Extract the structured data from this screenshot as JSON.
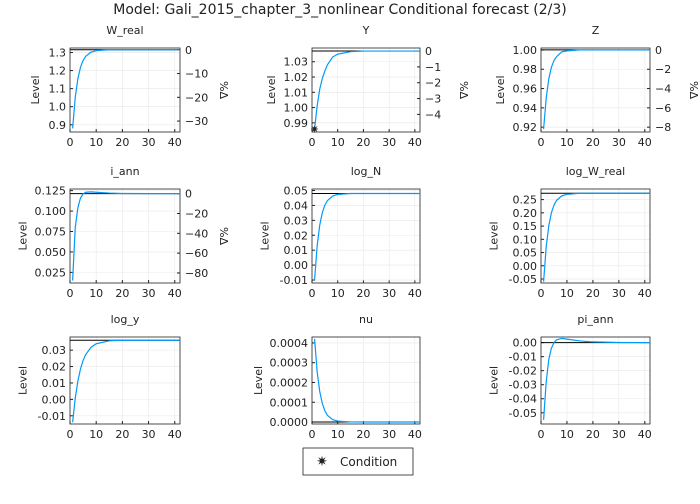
{
  "title": "Model: Gali_2015_chapter_3_nonlinear      Conditional forecast  (2/3)",
  "legend": {
    "label": "Condition",
    "marker": "star",
    "placement": "bottom-center"
  },
  "colors": {
    "forecast": "#009af9",
    "steady_state": "#000000",
    "grid": "#e8e8e8"
  },
  "chart_data": [
    {
      "type": "line",
      "title": "W_real",
      "ylabel": "Level",
      "ylabel_right": "%Δ",
      "ylim": [
        0.86,
        1.325
      ],
      "yticks": [
        0.9,
        1.0,
        1.1,
        1.2,
        1.3
      ],
      "ytick_labels": [
        "0.9",
        "1.0",
        "1.1",
        "1.2",
        "1.3"
      ],
      "yticks_right": [
        0,
        -10,
        -20,
        -30
      ],
      "steady_state": 1.315,
      "xlim": [
        0,
        42
      ],
      "xticks": [
        0,
        10,
        20,
        30,
        40
      ],
      "x": [
        1,
        2,
        3,
        4,
        5,
        6,
        8,
        10,
        15,
        20,
        30,
        40
      ],
      "values": [
        0.88,
        1.051,
        1.155,
        1.218,
        1.256,
        1.279,
        1.302,
        1.31,
        1.315,
        1.315,
        1.315,
        1.315
      ]
    },
    {
      "type": "line",
      "title": "Y",
      "ylabel": "Level",
      "ylabel_right": "%Δ",
      "ylim": [
        0.984,
        1.039
      ],
      "yticks": [
        0.99,
        1.0,
        1.01,
        1.02,
        1.03
      ],
      "ytick_labels": [
        "0.99",
        "1.00",
        "1.01",
        "1.02",
        "1.03"
      ],
      "yticks_right": [
        0,
        -1,
        -2,
        -3,
        -4
      ],
      "steady_state": 1.037,
      "xlim": [
        0,
        42
      ],
      "xticks": [
        0,
        10,
        20,
        30,
        40
      ],
      "x": [
        1,
        2,
        3,
        4,
        5,
        6,
        8,
        10,
        15,
        20,
        30,
        40
      ],
      "values": [
        0.986,
        1.001,
        1.012,
        1.019,
        1.024,
        1.028,
        1.033,
        1.035,
        1.0366,
        1.037,
        1.037,
        1.037
      ],
      "conditions": [
        {
          "x": 1,
          "y": 0.986
        }
      ]
    },
    {
      "type": "line",
      "title": "Z",
      "ylabel": "Level",
      "ylabel_right": "%Δ",
      "ylim": [
        0.915,
        1.002
      ],
      "yticks": [
        0.92,
        0.94,
        0.96,
        0.98,
        1.0
      ],
      "ytick_labels": [
        "0.92",
        "0.94",
        "0.96",
        "0.98",
        "1.00"
      ],
      "yticks_right": [
        0,
        -2,
        -4,
        -6,
        -8
      ],
      "steady_state": 1.0,
      "xlim": [
        0,
        42
      ],
      "xticks": [
        0,
        10,
        20,
        30,
        40
      ],
      "x": [
        1,
        2,
        3,
        4,
        5,
        6,
        8,
        10,
        15,
        20,
        30,
        40
      ],
      "values": [
        0.918,
        0.95,
        0.97,
        0.982,
        0.989,
        0.993,
        0.998,
        0.999,
        1.0,
        1.0,
        1.0,
        1.0
      ]
    },
    {
      "type": "line",
      "title": "i_ann",
      "ylabel": "Level",
      "ylabel_right": "%Δ",
      "ylim": [
        0.012,
        0.127
      ],
      "yticks": [
        0.025,
        0.05,
        0.075,
        0.1,
        0.125
      ],
      "ytick_labels": [
        "0.025",
        "0.050",
        "0.075",
        "0.100",
        "0.125"
      ],
      "yticks_right": [
        0,
        -20,
        -40,
        -60,
        -80
      ],
      "steady_state": 0.1213,
      "xlim": [
        0,
        42
      ],
      "xticks": [
        0,
        10,
        20,
        30,
        40
      ],
      "x": [
        1,
        2,
        3,
        4,
        5,
        6,
        8,
        10,
        15,
        20,
        30,
        40
      ],
      "values": [
        0.015,
        0.08,
        0.104,
        0.116,
        0.121,
        0.123,
        0.1235,
        0.123,
        0.122,
        0.1215,
        0.1213,
        0.1213
      ]
    },
    {
      "type": "line",
      "title": "log_N",
      "ylabel": "Level",
      "ylim": [
        -0.012,
        0.051
      ],
      "yticks": [
        -0.01,
        0,
        0.01,
        0.02,
        0.03,
        0.04,
        0.05
      ],
      "ytick_labels": [
        "-0.01",
        "0.00",
        "0.01",
        "0.02",
        "0.03",
        "0.04",
        "0.05"
      ],
      "steady_state": 0.048,
      "xlim": [
        0,
        42
      ],
      "xticks": [
        0,
        10,
        20,
        30,
        40
      ],
      "x": [
        1,
        2,
        3,
        4,
        5,
        6,
        8,
        10,
        15,
        20,
        30,
        40
      ],
      "values": [
        -0.01,
        0.0128,
        0.0267,
        0.0351,
        0.0402,
        0.0432,
        0.0463,
        0.0474,
        0.048,
        0.048,
        0.048,
        0.048
      ]
    },
    {
      "type": "line",
      "title": "log_W_real",
      "ylabel": "Level",
      "ylim": [
        -0.065,
        0.29
      ],
      "yticks": [
        -0.05,
        0,
        0.05,
        0.1,
        0.15,
        0.2,
        0.25
      ],
      "ytick_labels": [
        "-0.05",
        "0.00",
        "0.05",
        "0.10",
        "0.15",
        "0.20",
        "0.25"
      ],
      "steady_state": 0.274,
      "xlim": [
        0,
        42
      ],
      "xticks": [
        0,
        10,
        20,
        30,
        40
      ],
      "x": [
        1,
        2,
        3,
        4,
        5,
        6,
        8,
        10,
        15,
        20,
        30,
        40
      ],
      "values": [
        -0.06,
        0.071,
        0.151,
        0.2,
        0.229,
        0.247,
        0.264,
        0.27,
        0.274,
        0.274,
        0.274,
        0.274
      ]
    },
    {
      "type": "line",
      "title": "log_y",
      "ylabel": "Level",
      "ylim": [
        -0.015,
        0.038
      ],
      "yticks": [
        -0.01,
        0,
        0.01,
        0.02,
        0.03
      ],
      "ytick_labels": [
        "-0.01",
        "0.00",
        "0.01",
        "0.02",
        "0.03"
      ],
      "steady_state": 0.036,
      "xlim": [
        0,
        42
      ],
      "xticks": [
        0,
        10,
        20,
        30,
        40
      ],
      "x": [
        1,
        2,
        3,
        4,
        5,
        6,
        8,
        10,
        15,
        20,
        30,
        40
      ],
      "values": [
        -0.014,
        0.0007,
        0.0111,
        0.0185,
        0.0237,
        0.0273,
        0.0317,
        0.0339,
        0.0357,
        0.036,
        0.036,
        0.036
      ]
    },
    {
      "type": "line",
      "title": "nu",
      "ylabel": "Level",
      "ylim": [
        -1e-05,
        0.00043
      ],
      "yticks": [
        0,
        0.0001,
        0.0002,
        0.0003,
        0.0004
      ],
      "ytick_labels": [
        "0.0000",
        "0.0001",
        "0.0002",
        "0.0003",
        "0.0004"
      ],
      "steady_state": 0,
      "xlim": [
        0,
        42
      ],
      "xticks": [
        0,
        10,
        20,
        30,
        40
      ],
      "x": [
        1,
        2,
        3,
        4,
        5,
        6,
        8,
        10,
        15,
        20,
        30,
        40
      ],
      "values": [
        0.00042,
        0.000255,
        0.000155,
        9.4e-05,
        5.7e-05,
        3.4e-05,
        1.26e-05,
        4.6e-06,
        5e-07,
        0,
        0,
        0
      ]
    },
    {
      "type": "line",
      "title": "pi_ann",
      "ylabel": "Level",
      "ylim": [
        -0.058,
        0.004
      ],
      "yticks": [
        -0.05,
        -0.04,
        -0.03,
        -0.02,
        -0.01,
        0
      ],
      "ytick_labels": [
        "-0.05",
        "-0.04",
        "-0.03",
        "-0.02",
        "-0.01",
        "0.00"
      ],
      "steady_state": 0,
      "xlim": [
        0,
        42
      ],
      "xticks": [
        0,
        10,
        20,
        30,
        40
      ],
      "x": [
        1,
        2,
        3,
        4,
        5,
        6,
        8,
        10,
        15,
        20,
        30,
        40
      ],
      "values": [
        -0.055,
        -0.028,
        -0.012,
        -0.004,
        0,
        0.002,
        0.003,
        0.0025,
        0.0012,
        0.0005,
        0.0001,
        0
      ]
    }
  ]
}
